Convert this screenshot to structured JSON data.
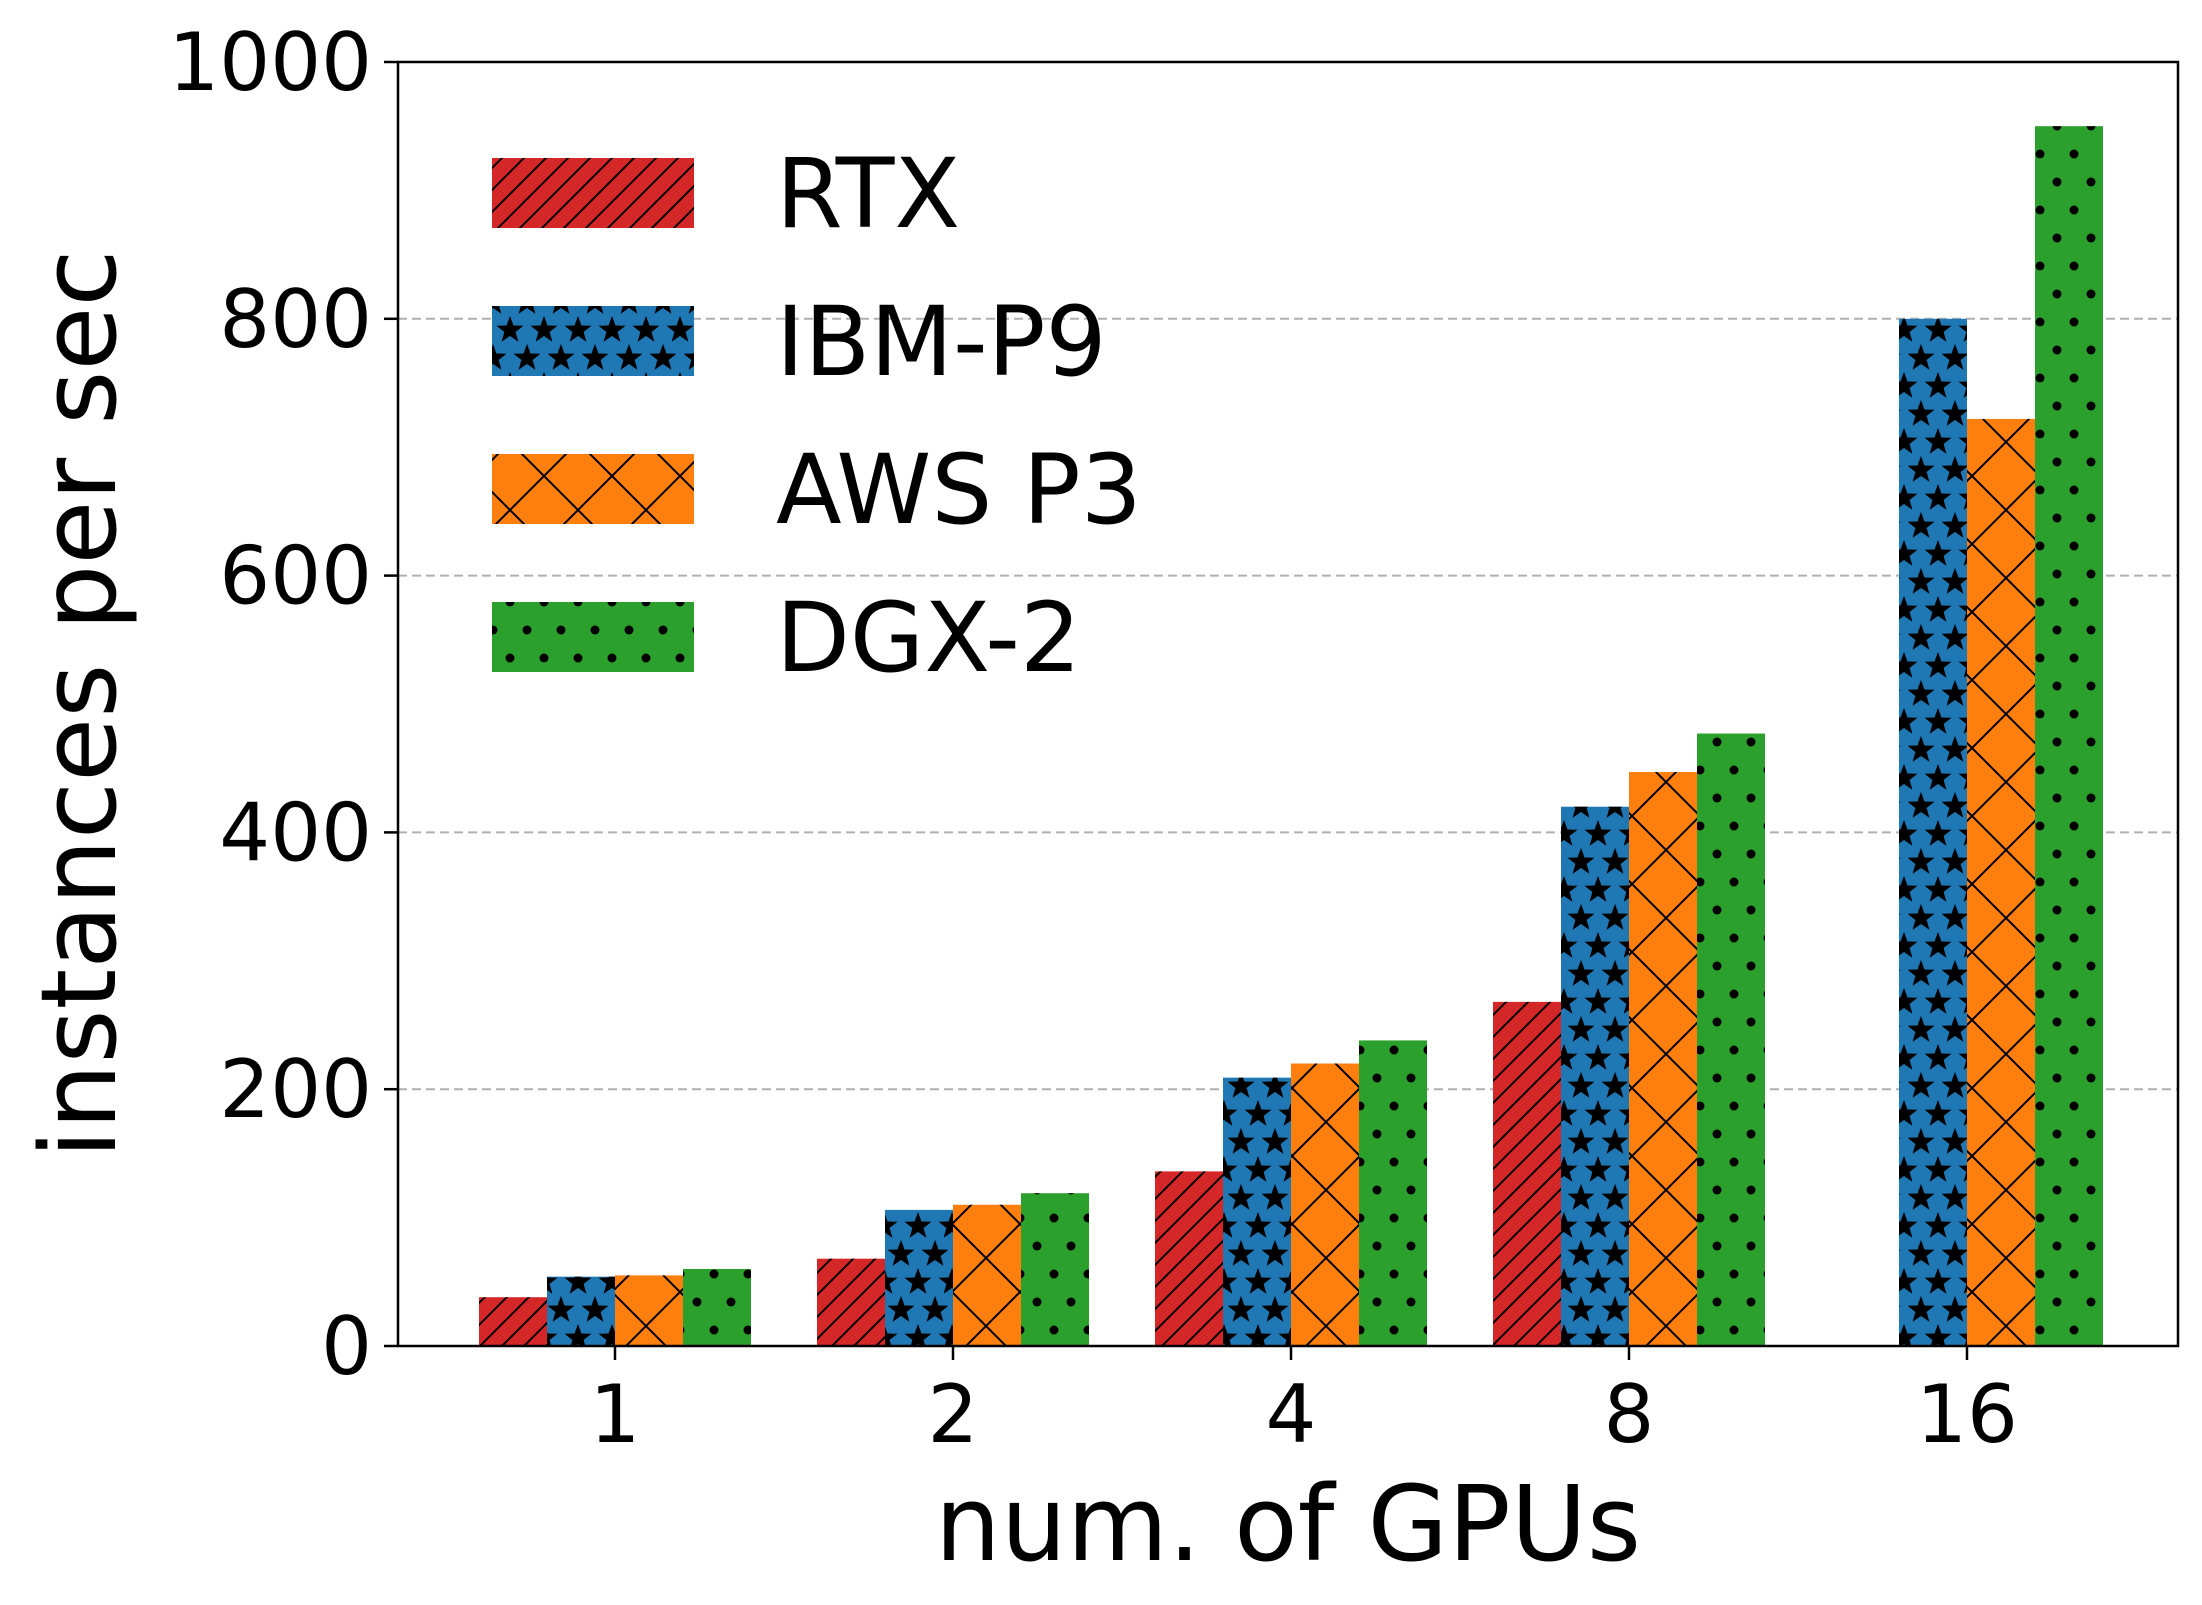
{
  "chart_data": {
    "type": "bar",
    "title": "",
    "xlabel": "num. of GPUs",
    "ylabel": "instances per sec",
    "categories": [
      "1",
      "2",
      "4",
      "8",
      "16"
    ],
    "ylim": [
      0,
      1000
    ],
    "yticks": [
      0,
      200,
      400,
      600,
      800,
      1000
    ],
    "ytick_labels": [
      "0",
      "200",
      "400",
      "600",
      "800",
      "1000"
    ],
    "grid": "horizontal dashed at 200, 400, 600, 800",
    "legend_position": "upper-left",
    "series": [
      {
        "name": "RTX",
        "color": "#d62728",
        "hatch": "diagonal",
        "values": [
          38,
          68,
          136,
          268,
          null
        ]
      },
      {
        "name": "IBM-P9",
        "color": "#1f77b4",
        "hatch": "stars",
        "values": [
          54,
          106,
          209,
          420,
          800
        ]
      },
      {
        "name": "AWS P3",
        "color": "#ff7f0e",
        "hatch": "crosshatch",
        "values": [
          55,
          110,
          220,
          447,
          722
        ]
      },
      {
        "name": "DGX-2",
        "color": "#2ca02c",
        "hatch": "dots",
        "values": [
          60,
          119,
          238,
          477,
          950
        ]
      }
    ]
  }
}
